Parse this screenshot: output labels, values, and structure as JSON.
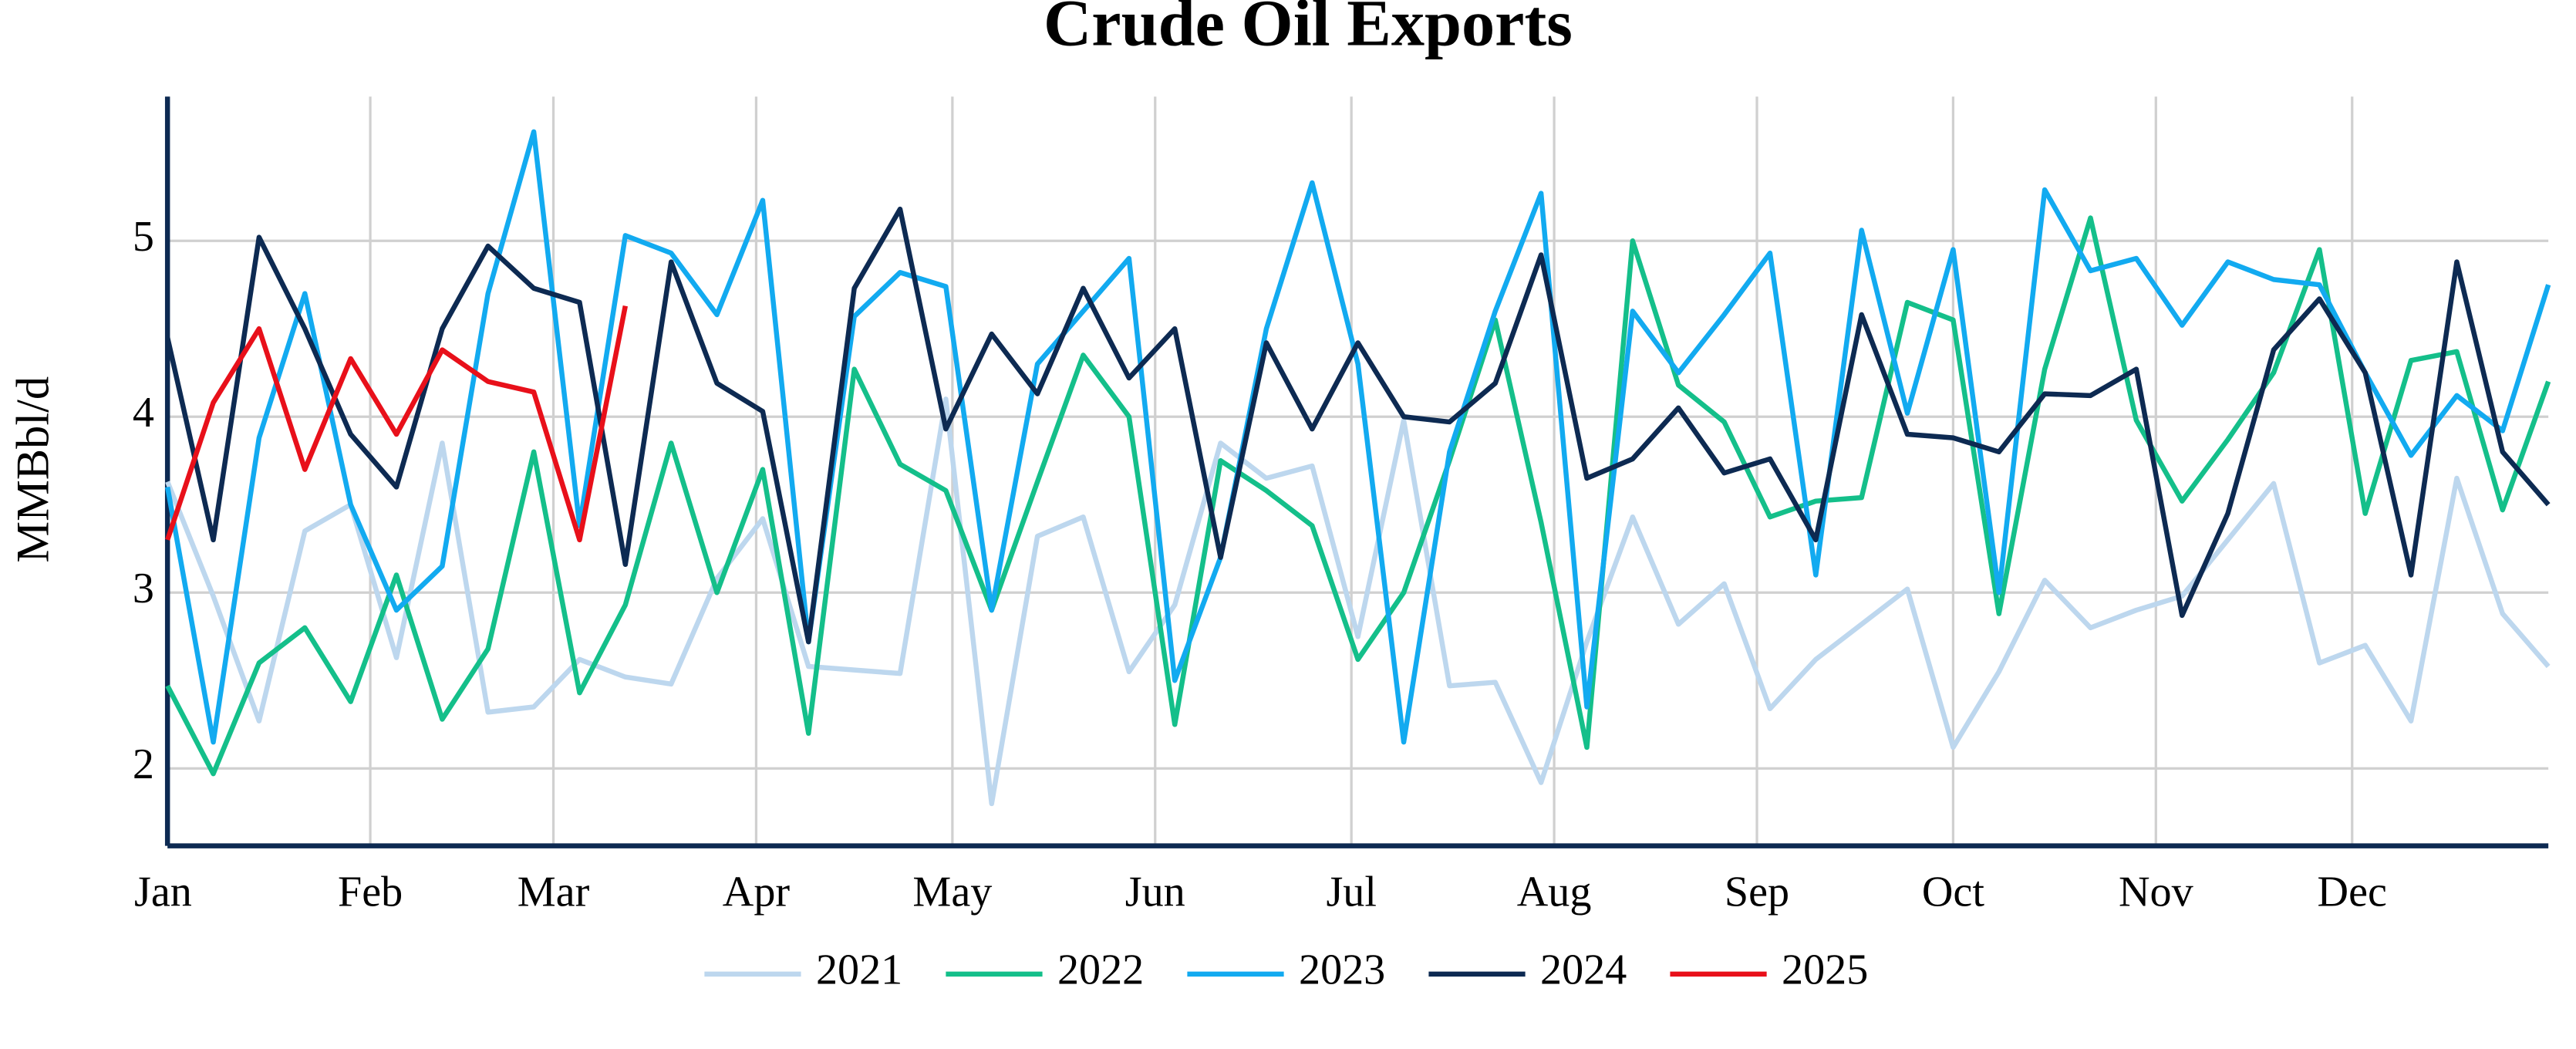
{
  "chart_data": {
    "type": "line",
    "title": "Crude Oil Exports",
    "y_label": "MMBbl/d",
    "x": [
      0,
      7,
      14,
      21,
      28,
      35,
      42,
      49,
      56,
      63,
      70,
      77,
      84,
      91,
      98,
      105,
      112,
      119,
      126,
      133,
      140,
      147,
      154,
      161,
      168,
      175,
      182,
      189,
      196,
      203,
      210,
      217,
      224,
      231,
      238,
      245,
      252,
      259,
      266,
      273,
      280,
      287,
      294,
      301,
      308,
      315,
      322,
      329,
      336,
      343,
      350,
      357,
      364
    ],
    "xlim": [
      0,
      364
    ],
    "xticks": [
      {
        "value": 0,
        "label": "Jan"
      },
      {
        "value": 31,
        "label": "Feb"
      },
      {
        "value": 59,
        "label": "Mar"
      },
      {
        "value": 90,
        "label": "Apr"
      },
      {
        "value": 120,
        "label": "May"
      },
      {
        "value": 151,
        "label": "Jun"
      },
      {
        "value": 181,
        "label": "Jul"
      },
      {
        "value": 212,
        "label": "Aug"
      },
      {
        "value": 243,
        "label": "Sep"
      },
      {
        "value": 273,
        "label": "Oct"
      },
      {
        "value": 304,
        "label": "Nov"
      },
      {
        "value": 334,
        "label": "Dec"
      }
    ],
    "ylim": [
      1.56,
      5.82
    ],
    "yticks": [
      2,
      3,
      4,
      5
    ],
    "grid": true,
    "legend": "bottom",
    "series": [
      {
        "name": "2021",
        "color": "#bdd7ee",
        "values": [
          3.63,
          2.98,
          2.27,
          3.35,
          3.5,
          2.63,
          3.85,
          2.32,
          2.35,
          2.62,
          2.52,
          2.48,
          3.08,
          3.42,
          2.58,
          2.56,
          2.54,
          4.1,
          1.8,
          3.32,
          3.43,
          2.55,
          2.93,
          3.85,
          3.65,
          3.72,
          2.75,
          3.98,
          2.47,
          2.49,
          1.92,
          2.72,
          3.43,
          2.82,
          3.05,
          2.34,
          2.62,
          2.82,
          3.02,
          2.12,
          2.55,
          3.07,
          2.8,
          2.9,
          2.98,
          3.3,
          3.62,
          2.6,
          2.7,
          2.27,
          3.65,
          2.88,
          2.58
        ]
      },
      {
        "name": "2022",
        "color": "#14bf8a",
        "values": [
          2.47,
          1.97,
          2.6,
          2.8,
          2.38,
          3.1,
          2.28,
          2.68,
          3.8,
          2.43,
          2.93,
          3.85,
          3.0,
          3.7,
          2.2,
          4.27,
          3.73,
          3.58,
          2.9,
          3.63,
          4.35,
          4.0,
          2.25,
          3.75,
          3.58,
          3.38,
          2.62,
          3.0,
          3.75,
          4.55,
          3.4,
          2.12,
          5.0,
          4.18,
          3.97,
          3.43,
          3.52,
          3.54,
          4.65,
          4.55,
          2.88,
          4.27,
          5.13,
          3.98,
          3.52,
          3.87,
          4.25,
          4.95,
          3.45,
          4.32,
          4.37,
          3.47,
          4.2
        ]
      },
      {
        "name": "2023",
        "color": "#12aaf0",
        "values": [
          3.6,
          2.15,
          3.88,
          4.7,
          3.5,
          2.9,
          3.15,
          4.7,
          5.62,
          3.38,
          5.03,
          4.93,
          4.58,
          5.23,
          2.72,
          4.57,
          4.82,
          4.74,
          2.9,
          4.3,
          4.6,
          4.9,
          2.5,
          3.2,
          4.5,
          5.33,
          4.3,
          2.15,
          3.8,
          4.6,
          5.27,
          2.35,
          4.6,
          4.25,
          4.58,
          4.93,
          3.1,
          5.06,
          4.02,
          4.95,
          3.0,
          5.29,
          4.83,
          4.9,
          4.52,
          4.88,
          4.78,
          4.75,
          4.25,
          3.78,
          4.12,
          3.92,
          4.75
        ]
      },
      {
        "name": "2024",
        "color": "#0d2a52",
        "values": [
          4.45,
          3.3,
          5.02,
          4.5,
          3.9,
          3.6,
          4.5,
          4.97,
          4.73,
          4.65,
          3.16,
          4.88,
          4.19,
          4.03,
          2.72,
          4.73,
          5.18,
          3.93,
          4.47,
          4.13,
          4.73,
          4.22,
          4.5,
          3.2,
          4.42,
          3.93,
          4.42,
          4.0,
          3.97,
          4.19,
          4.92,
          3.65,
          3.76,
          4.05,
          3.68,
          3.76,
          3.3,
          4.58,
          3.9,
          3.88,
          3.8,
          4.13,
          4.12,
          4.27,
          2.87,
          3.45,
          4.38,
          4.67,
          4.25,
          3.1,
          4.88,
          3.8,
          3.5
        ]
      },
      {
        "name": "2025",
        "color": "#e8101a",
        "values": [
          3.3,
          4.08,
          4.5,
          3.7,
          4.33,
          3.9,
          4.38,
          4.2,
          4.14,
          3.3,
          4.63,
          null,
          null,
          null,
          null,
          null,
          null,
          null,
          null,
          null,
          null,
          null,
          null,
          null,
          null,
          null,
          null,
          null,
          null,
          null,
          null,
          null,
          null,
          null,
          null,
          null,
          null,
          null,
          null,
          null,
          null,
          null,
          null,
          null,
          null,
          null,
          null,
          null,
          null,
          null,
          null,
          null,
          null
        ]
      }
    ]
  }
}
